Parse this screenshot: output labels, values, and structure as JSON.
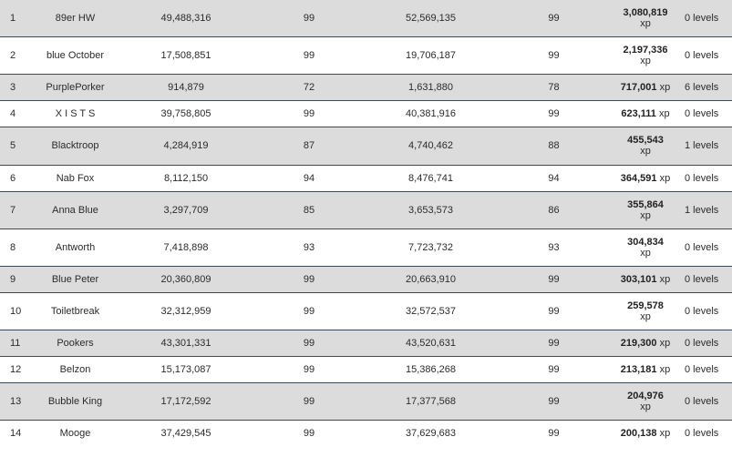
{
  "rows": [
    {
      "rank": "1",
      "name": "89er HW",
      "xp_start": "49,488,316",
      "level_start": "99",
      "xp_end": "52,569,135",
      "level_end": "99",
      "xp_gain": "3,080,819",
      "xp_unit": "xp",
      "levels_gained": "0 levels",
      "wrap": true,
      "shade": true
    },
    {
      "rank": "2",
      "name": "blue October",
      "xp_start": "17,508,851",
      "level_start": "99",
      "xp_end": "19,706,187",
      "level_end": "99",
      "xp_gain": "2,197,336",
      "xp_unit": "xp",
      "levels_gained": "0 levels",
      "wrap": true,
      "shade": false
    },
    {
      "rank": "3",
      "name": "PurplePorker",
      "xp_start": "914,879",
      "level_start": "72",
      "xp_end": "1,631,880",
      "level_end": "78",
      "xp_gain": "717,001",
      "xp_unit": "xp",
      "levels_gained": "6 levels",
      "wrap": false,
      "shade": true
    },
    {
      "rank": "4",
      "name": "X I S T S",
      "xp_start": "39,758,805",
      "level_start": "99",
      "xp_end": "40,381,916",
      "level_end": "99",
      "xp_gain": "623,111",
      "xp_unit": "xp",
      "levels_gained": "0 levels",
      "wrap": false,
      "shade": false
    },
    {
      "rank": "5",
      "name": "Blacktroop",
      "xp_start": "4,284,919",
      "level_start": "87",
      "xp_end": "4,740,462",
      "level_end": "88",
      "xp_gain": "455,543",
      "xp_unit": "xp",
      "levels_gained": "1 levels",
      "wrap": true,
      "shade": true
    },
    {
      "rank": "6",
      "name": "Nab Fox",
      "xp_start": "8,112,150",
      "level_start": "94",
      "xp_end": "8,476,741",
      "level_end": "94",
      "xp_gain": "364,591",
      "xp_unit": "xp",
      "levels_gained": "0 levels",
      "wrap": false,
      "shade": false
    },
    {
      "rank": "7",
      "name": "Anna Blue",
      "xp_start": "3,297,709",
      "level_start": "85",
      "xp_end": "3,653,573",
      "level_end": "86",
      "xp_gain": "355,864",
      "xp_unit": "xp",
      "levels_gained": "1 levels",
      "wrap": true,
      "shade": true
    },
    {
      "rank": "8",
      "name": "Antworth",
      "xp_start": "7,418,898",
      "level_start": "93",
      "xp_end": "7,723,732",
      "level_end": "93",
      "xp_gain": "304,834",
      "xp_unit": "xp",
      "levels_gained": "0 levels",
      "wrap": true,
      "shade": false
    },
    {
      "rank": "9",
      "name": "Blue Peter",
      "xp_start": "20,360,809",
      "level_start": "99",
      "xp_end": "20,663,910",
      "level_end": "99",
      "xp_gain": "303,101",
      "xp_unit": "xp",
      "levels_gained": "0 levels",
      "wrap": false,
      "shade": true
    },
    {
      "rank": "10",
      "name": "Toiletbreak",
      "xp_start": "32,312,959",
      "level_start": "99",
      "xp_end": "32,572,537",
      "level_end": "99",
      "xp_gain": "259,578",
      "xp_unit": "xp",
      "levels_gained": "0 levels",
      "wrap": true,
      "shade": false
    },
    {
      "rank": "11",
      "name": "Pookers",
      "xp_start": "43,301,331",
      "level_start": "99",
      "xp_end": "43,520,631",
      "level_end": "99",
      "xp_gain": "219,300",
      "xp_unit": "xp",
      "levels_gained": "0 levels",
      "wrap": false,
      "shade": true
    },
    {
      "rank": "12",
      "name": "Belzon",
      "xp_start": "15,173,087",
      "level_start": "99",
      "xp_end": "15,386,268",
      "level_end": "99",
      "xp_gain": "213,181",
      "xp_unit": "xp",
      "levels_gained": "0 levels",
      "wrap": false,
      "shade": false
    },
    {
      "rank": "13",
      "name": "Bubble King",
      "xp_start": "17,172,592",
      "level_start": "99",
      "xp_end": "17,377,568",
      "level_end": "99",
      "xp_gain": "204,976",
      "xp_unit": "xp",
      "levels_gained": "0 levels",
      "wrap": true,
      "shade": true
    },
    {
      "rank": "14",
      "name": "Mooge",
      "xp_start": "37,429,545",
      "level_start": "99",
      "xp_end": "37,629,683",
      "level_end": "99",
      "xp_gain": "200,138",
      "xp_unit": "xp",
      "levels_gained": "0 levels",
      "wrap": false,
      "shade": false
    }
  ],
  "colors": {
    "row_shade": "#dcdcdc",
    "row_white": "#ffffff",
    "divider": "#3c4a55",
    "text": "#2b2b2b"
  }
}
